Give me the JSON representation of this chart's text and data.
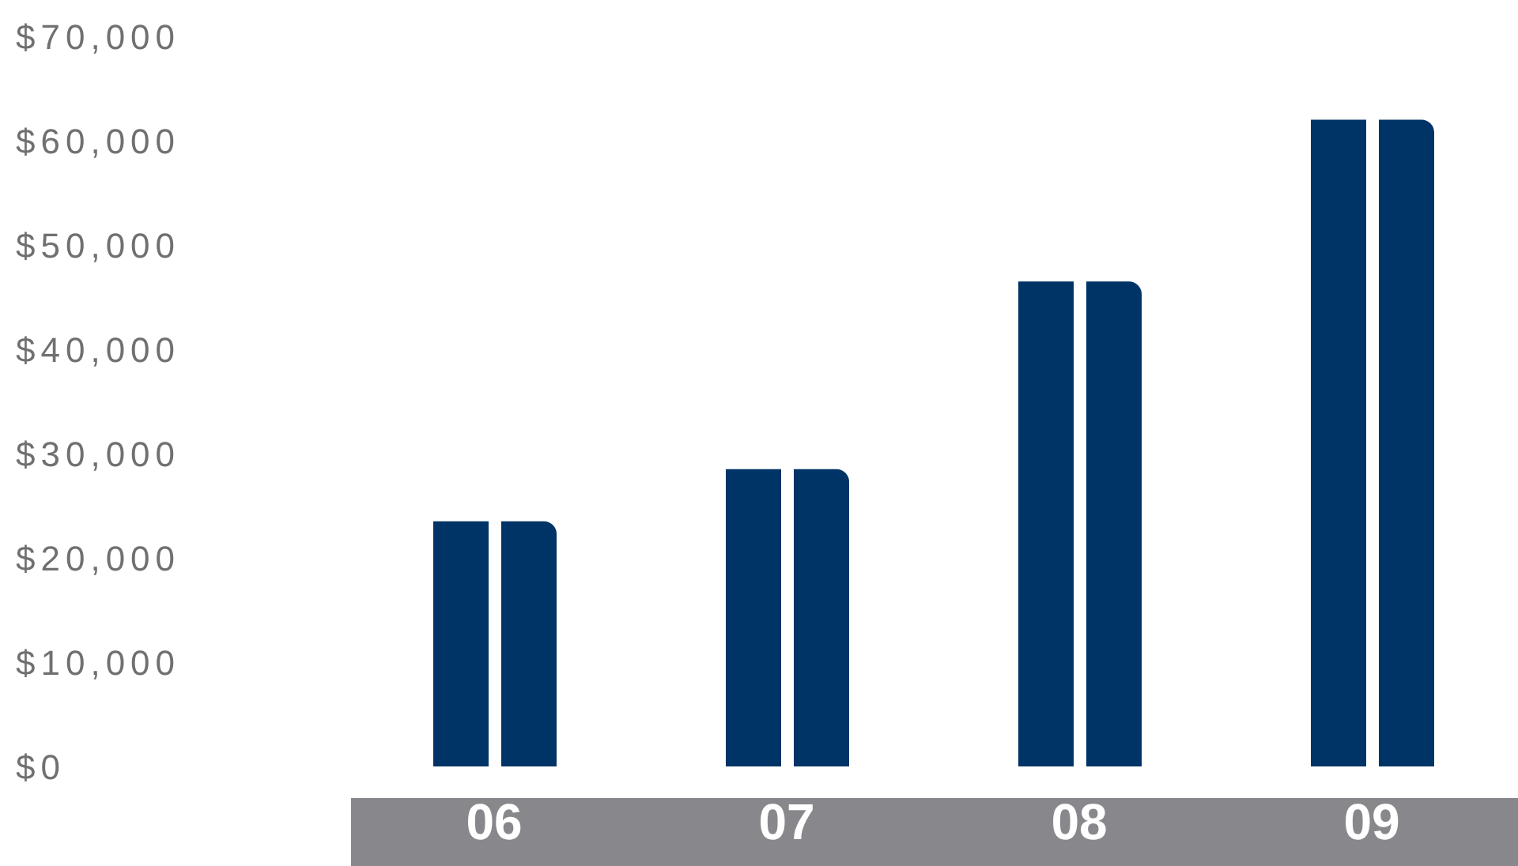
{
  "chart_data": {
    "type": "bar",
    "categories": [
      "06",
      "07",
      "08",
      "09"
    ],
    "series": [
      {
        "color": "#003466",
        "values": [
          23500,
          28500,
          46500,
          62000
        ]
      },
      {
        "color": "#003466",
        "values": [
          23500,
          28500,
          46500,
          62000
        ]
      }
    ],
    "ylim": [
      0,
      70000
    ],
    "yticks": [
      {
        "value": 0,
        "label": "$0"
      },
      {
        "value": 10000,
        "label": "$10,000"
      },
      {
        "value": 20000,
        "label": "$20,000"
      },
      {
        "value": 30000,
        "label": "$30,000"
      },
      {
        "value": 40000,
        "label": "$40,000"
      },
      {
        "value": 50000,
        "label": "$50,000"
      },
      {
        "value": 60000,
        "label": "$60,000"
      },
      {
        "value": 70000,
        "label": "$70,000"
      }
    ],
    "grid": false,
    "legend": false
  }
}
